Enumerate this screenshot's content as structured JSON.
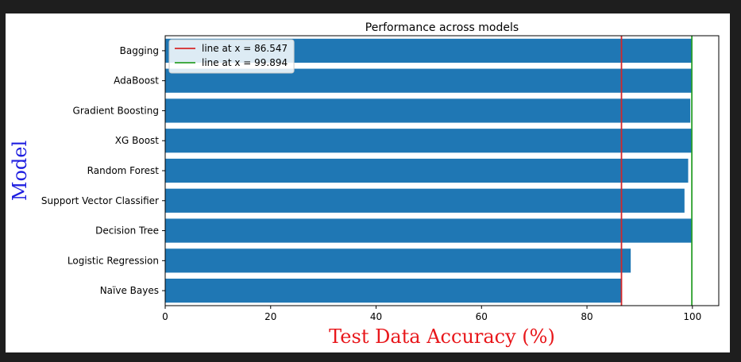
{
  "chart_data": {
    "type": "bar",
    "orientation": "horizontal",
    "title": "Performance across models",
    "xlabel": "Test Data Accuracy (%)",
    "ylabel": "Model",
    "xlabel_color": "#e8171b",
    "ylabel_color": "#1f1fe0",
    "bar_color": "#1f77b4",
    "xlim": [
      0,
      105
    ],
    "xticks": [
      0,
      20,
      40,
      60,
      80,
      100
    ],
    "categories": [
      "Bagging",
      "AdaBoost",
      "Gradient Boosting",
      "XG Boost",
      "Random Forest",
      "Support Vector Classifier",
      "Decision Tree",
      "Logistic Regression",
      "Naïve Bayes"
    ],
    "values": [
      99.9,
      99.9,
      99.6,
      99.9,
      99.2,
      98.5,
      99.9,
      88.3,
      86.5
    ],
    "reference_lines": [
      {
        "label": "line at x = 86.547",
        "x": 86.547,
        "color": "#d62728"
      },
      {
        "label": "line at x = 99.894",
        "x": 99.894,
        "color": "#2ca02c"
      }
    ],
    "legend_position": "top-left",
    "grid": false
  }
}
